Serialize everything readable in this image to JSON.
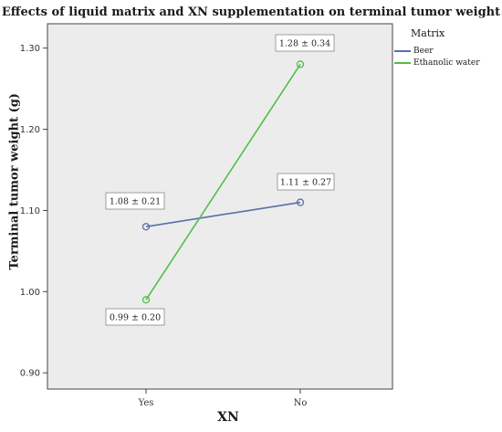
{
  "chart_data": {
    "type": "line",
    "title": "Effects of liquid matrix and XN supplementation on terminal tumor weight",
    "xlabel": "XN",
    "ylabel": "Terminal tumor weight (g)",
    "categories": [
      "Yes",
      "No"
    ],
    "ylim": [
      0.88,
      1.33
    ],
    "yticks": [
      "0.90",
      "1.00",
      "1.10",
      "1.20",
      "1.30"
    ],
    "ytick_values": [
      0.9,
      1.0,
      1.1,
      1.2,
      1.3
    ],
    "grid": false,
    "legend": {
      "title": "Matrix",
      "placement": "top-right, outside plot"
    },
    "series": [
      {
        "name": "Beer",
        "color": "#5a6fa8",
        "values": [
          1.08,
          1.11
        ],
        "labels": [
          "1.08 ± 0.21",
          "1.11 ± 0.27"
        ]
      },
      {
        "name": "Ethanolic water",
        "color": "#4fbf4a",
        "values": [
          0.99,
          1.28
        ],
        "labels": [
          "0.99 ± 0.20",
          "1.28 ± 0.34"
        ]
      }
    ]
  }
}
